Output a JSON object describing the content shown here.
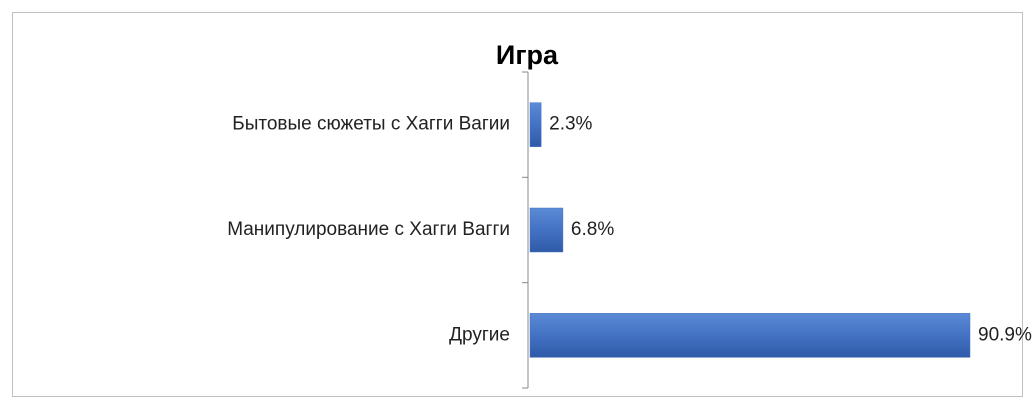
{
  "chart_data": {
    "type": "bar",
    "orientation": "horizontal",
    "title": "Игра",
    "categories": [
      "Бытовые сюжеты с Хагги Вагии",
      "Манипулирование с Хагги Вагги",
      "Другие"
    ],
    "values": [
      2.3,
      6.8,
      90.9
    ],
    "value_labels": [
      "2.3%",
      "6.8%",
      "90.9%"
    ],
    "color": "#4472c4"
  }
}
